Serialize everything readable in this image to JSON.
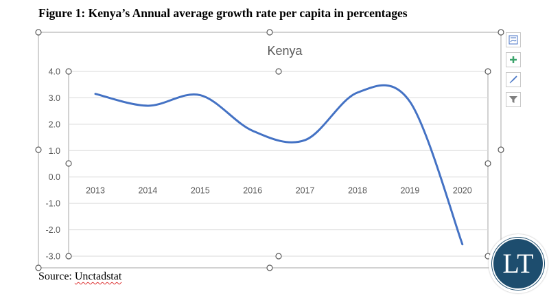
{
  "figure_heading": "Figure 1: Kenya’s Annual average growth rate per capita in percentages",
  "source_prefix": "Source: ",
  "source_name": "Unctadstat",
  "logo_text": "LT",
  "side_buttons": [
    {
      "name": "chart-layout-button",
      "icon": "chart-layout-icon"
    },
    {
      "name": "chart-elements-button",
      "icon": "plus-icon"
    },
    {
      "name": "chart-styles-button",
      "icon": "brush-icon"
    },
    {
      "name": "chart-filters-button",
      "icon": "filter-icon"
    }
  ],
  "colors": {
    "line": "#4472c4",
    "grid": "#d9d9d9",
    "axis_text": "#595959",
    "title": "#595959",
    "handle": "#595959",
    "frame": "#a6a6a6"
  },
  "chart_data": {
    "type": "line",
    "title": "Kenya",
    "xlabel": "",
    "ylabel": "",
    "categories": [
      "2013",
      "2014",
      "2015",
      "2016",
      "2017",
      "2018",
      "2019",
      "2020"
    ],
    "series": [
      {
        "name": "",
        "values": [
          3.15,
          2.7,
          3.1,
          1.75,
          1.4,
          3.2,
          2.85,
          -2.55
        ],
        "smooth": true
      }
    ],
    "ylim": [
      -3.0,
      4.0
    ],
    "yticks": [
      "4.0",
      "3.0",
      "2.0",
      "1.0",
      "0.0",
      "-1.0",
      "-2.0",
      "-3.0"
    ],
    "grid": true,
    "legend": "none"
  }
}
